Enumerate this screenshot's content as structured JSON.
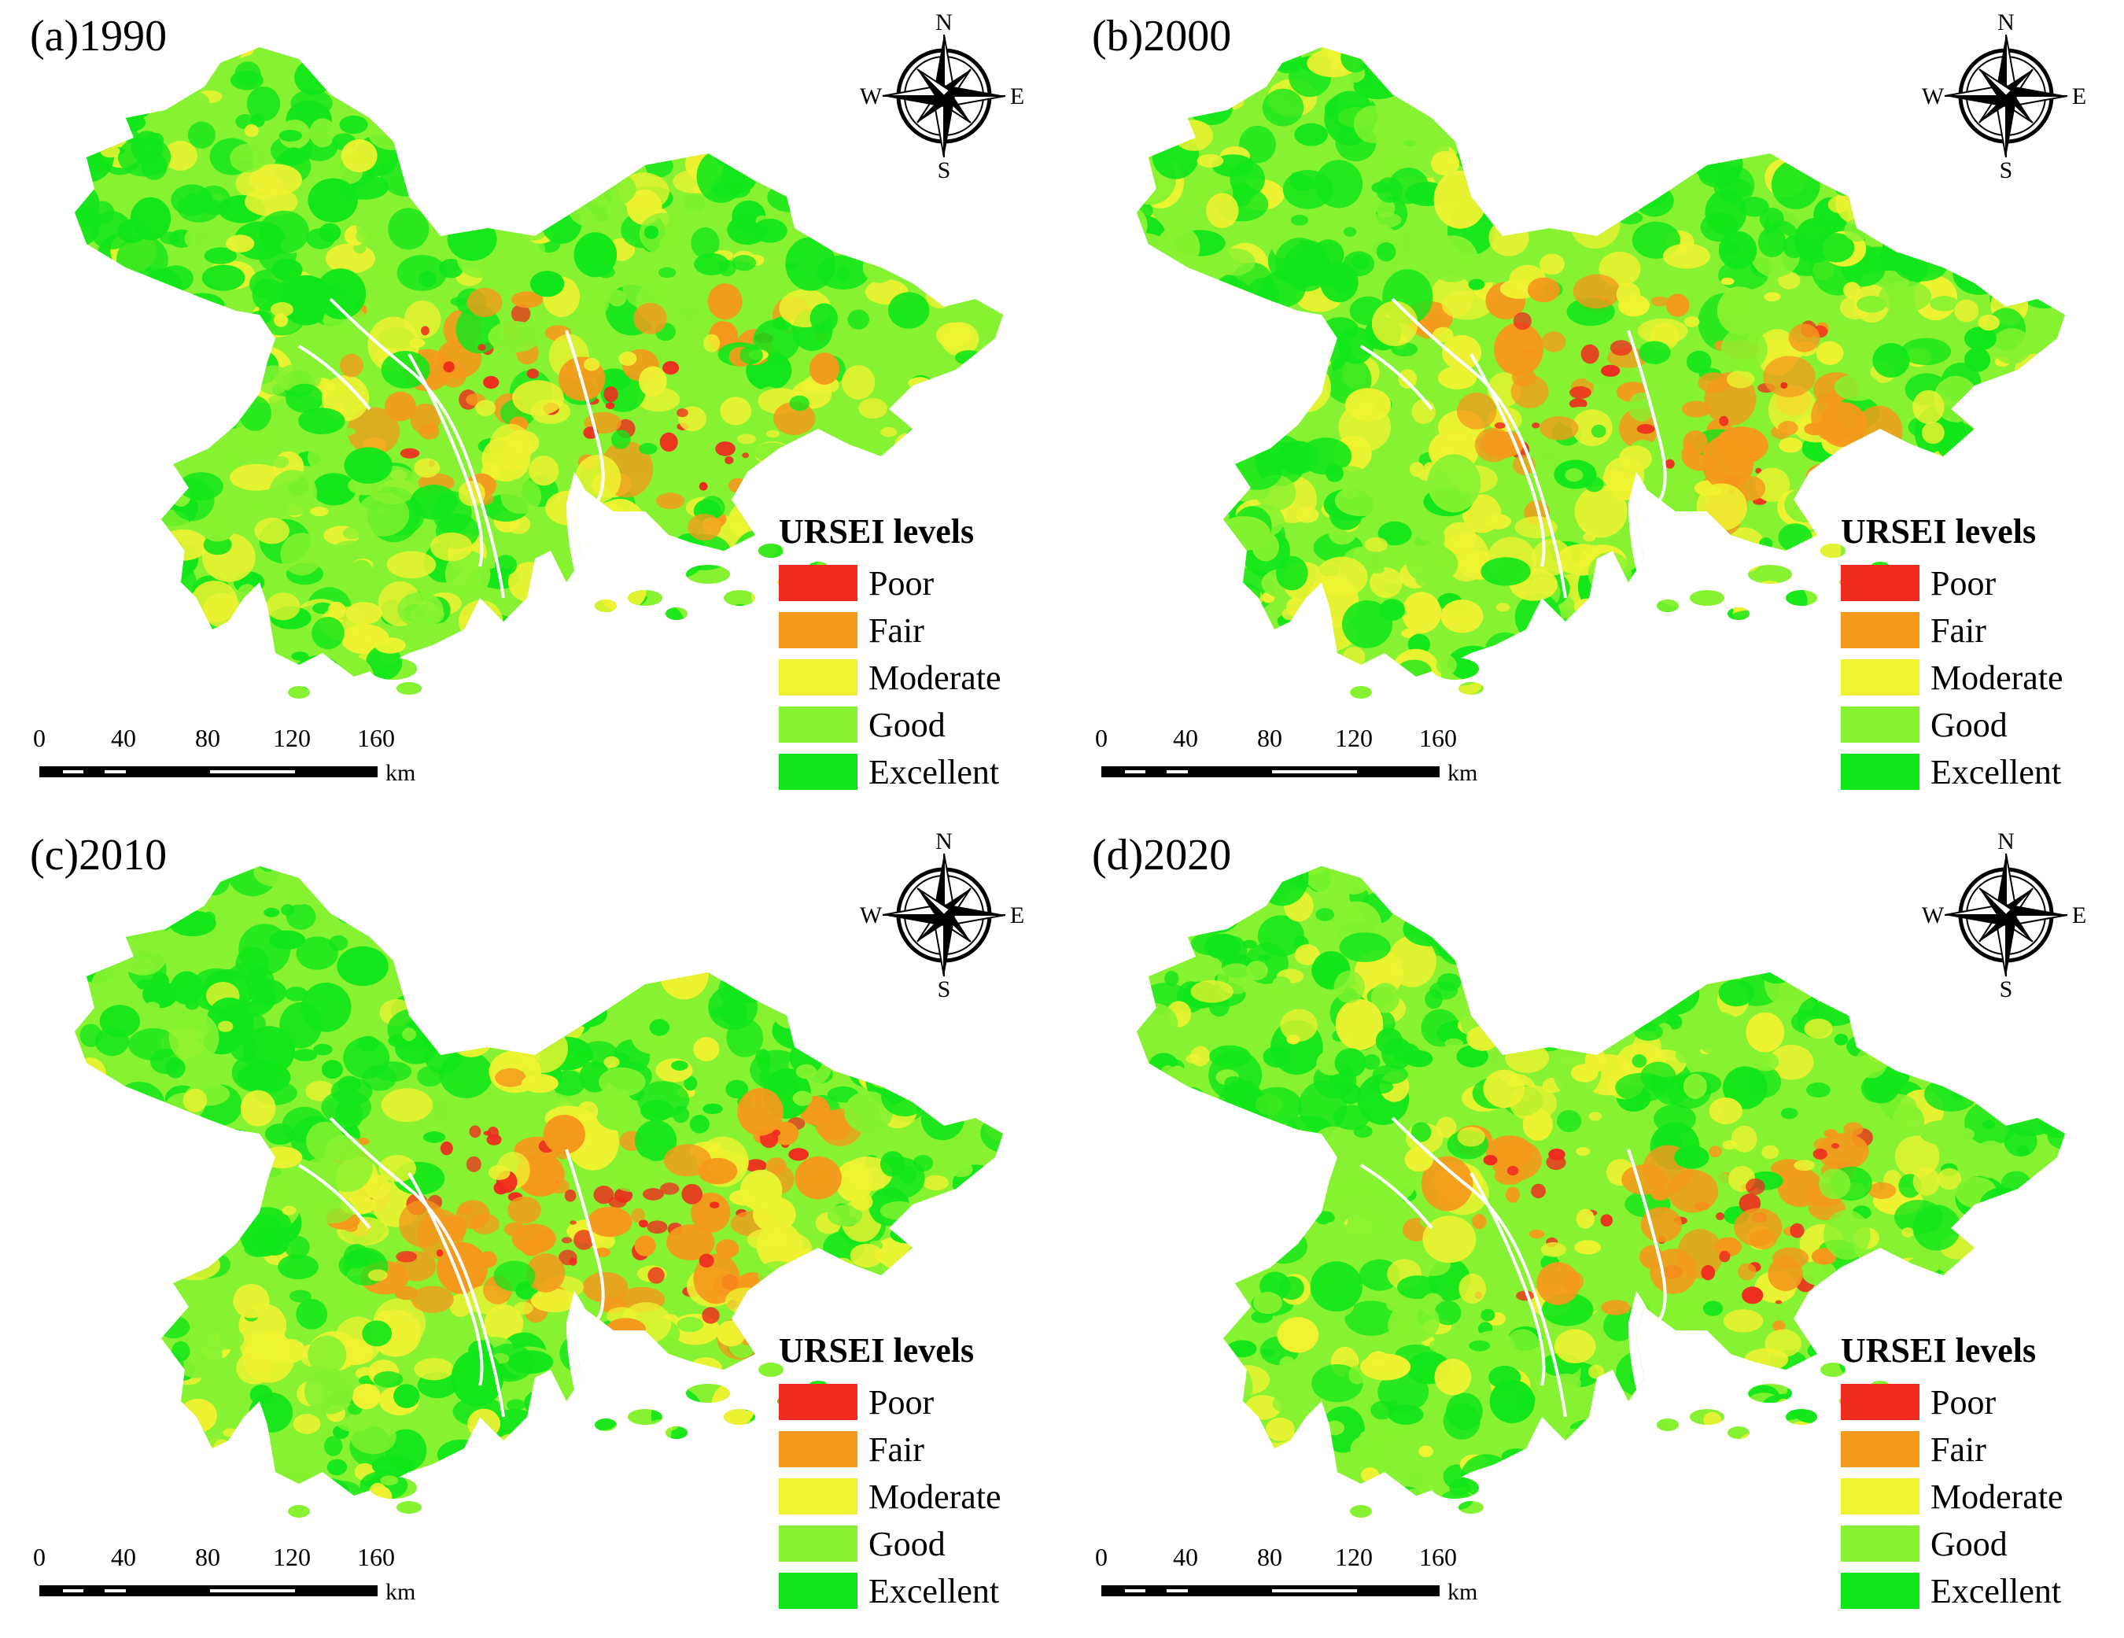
{
  "panels": [
    {
      "title": "(a)1990",
      "heat": 0.55
    },
    {
      "title": "(b)2000",
      "heat": 0.75
    },
    {
      "title": "(c)2010",
      "heat": 1.0
    },
    {
      "title": "(d)2020",
      "heat": 0.85
    }
  ],
  "compass": {
    "n": "N",
    "s": "S",
    "e": "E",
    "w": "W"
  },
  "legend": {
    "title": "URSEI levels",
    "items": [
      {
        "label": "Poor",
        "color": "#ef2b1f"
      },
      {
        "label": "Fair",
        "color": "#f5991c"
      },
      {
        "label": "Moderate",
        "color": "#eef231"
      },
      {
        "label": "Good",
        "color": "#86f231"
      },
      {
        "label": "Excellent",
        "color": "#11e61a"
      }
    ]
  },
  "scale": {
    "ticks": [
      "0",
      "40",
      "80",
      "120",
      "160"
    ],
    "unit": "km"
  }
}
